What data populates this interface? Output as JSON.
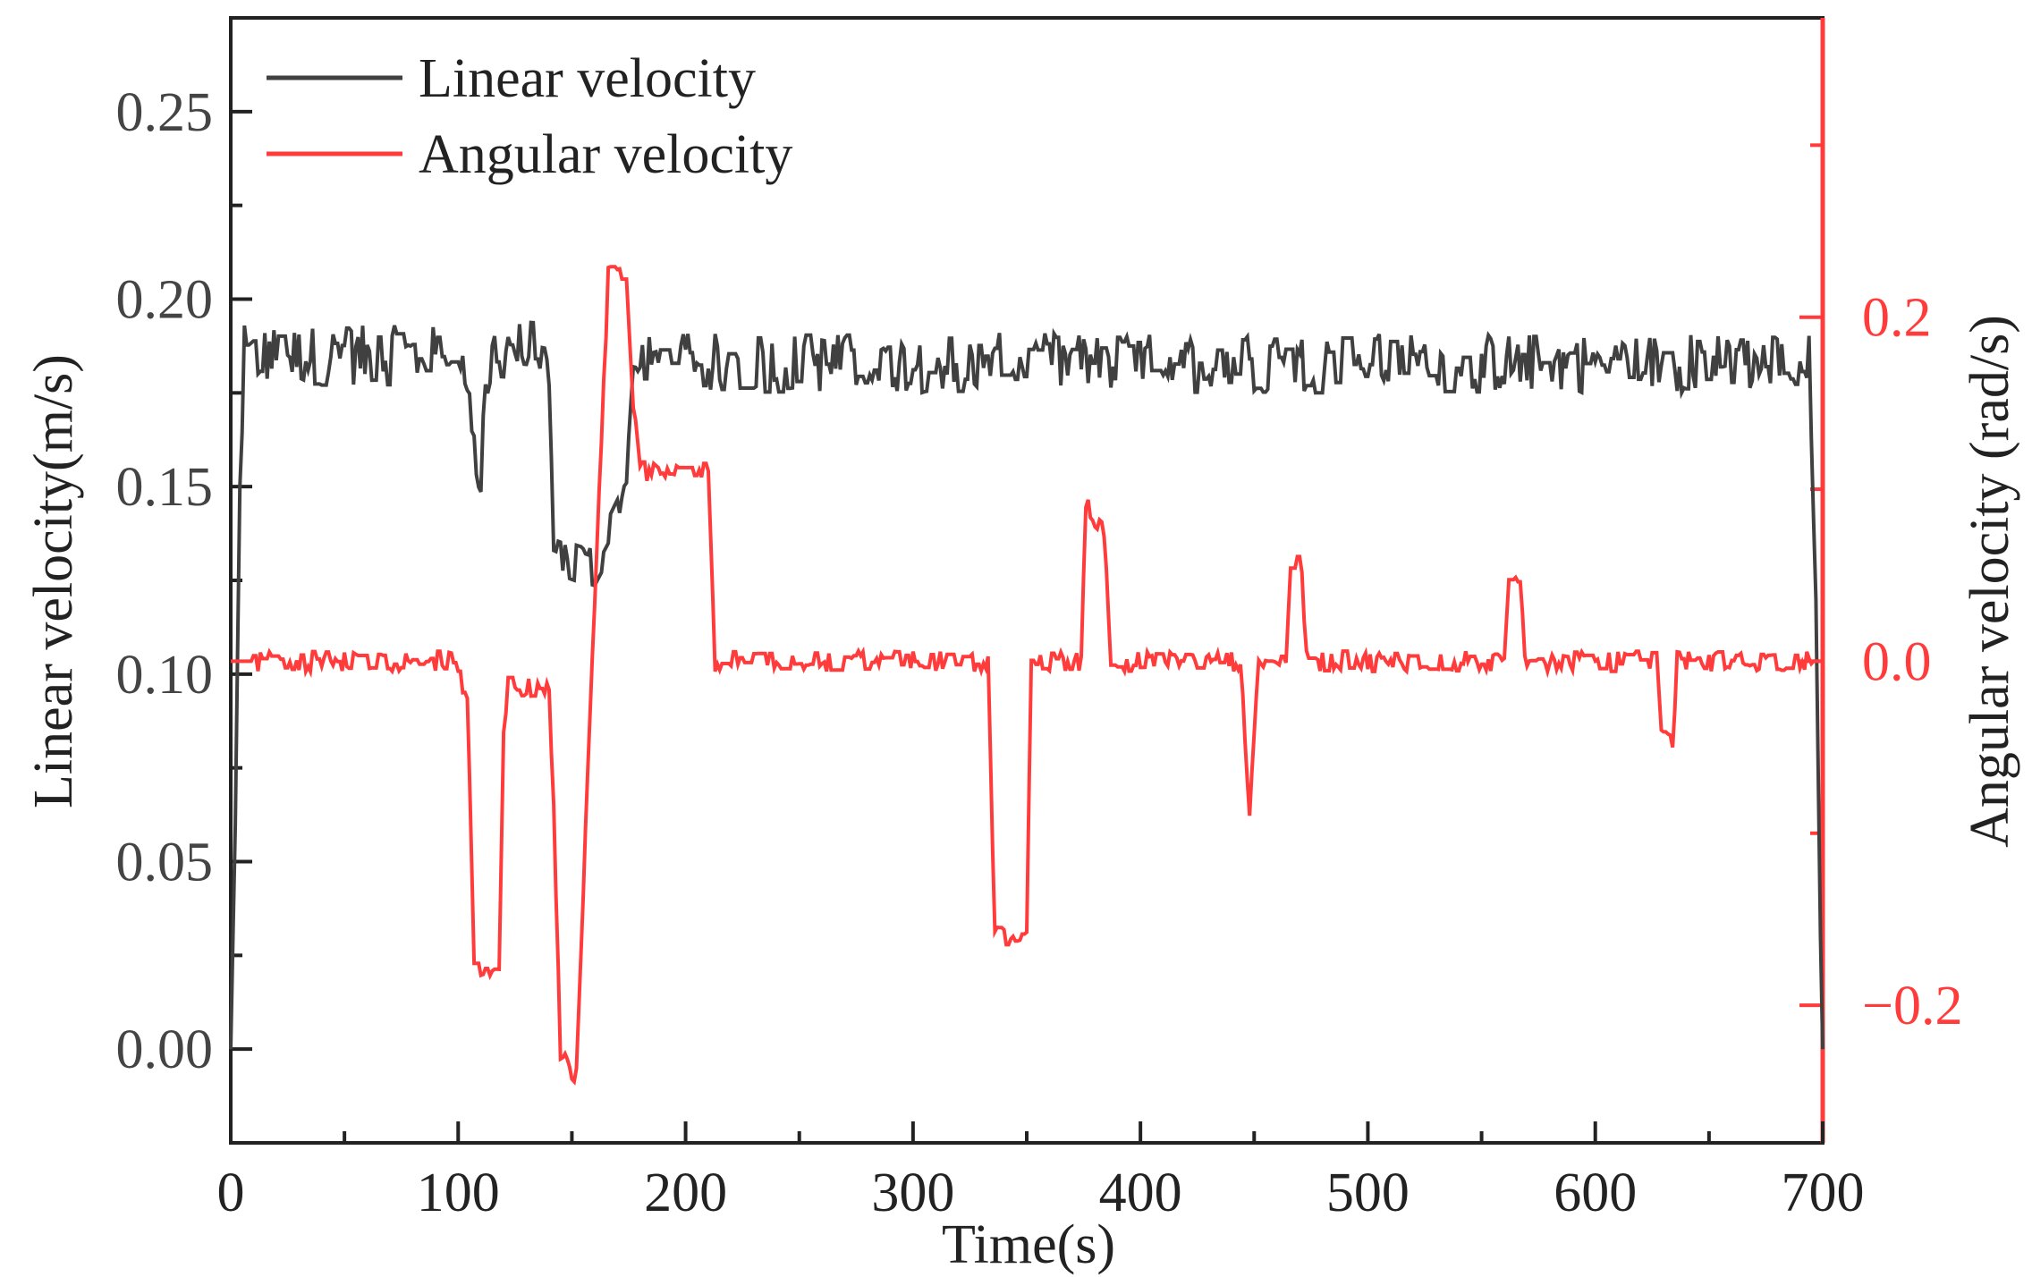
{
  "chart_data": {
    "type": "line",
    "title": "",
    "xlabel": "Time(s)",
    "ylabel": "Linear velocity(m/s)",
    "y2label": "Angular velocity (rad/s)",
    "xlim": [
      0,
      700
    ],
    "ylim": [
      -0.025,
      0.275
    ],
    "y2lim": [
      -0.28,
      0.374
    ],
    "xticks": [
      "0",
      "100",
      "200",
      "300",
      "400",
      "500",
      "600",
      "700"
    ],
    "yticks": [
      "0.00",
      "0.05",
      "0.10",
      "0.15",
      "0.20",
      "0.25"
    ],
    "y2ticks": [
      "−0.2",
      "0.0",
      "0.2"
    ],
    "legend_position": "top-left",
    "colors": {
      "linear": "#404040",
      "angular": "#ff3b3b",
      "axis": "#222222"
    },
    "series": [
      {
        "name": "Linear velocity",
        "axis": "left",
        "noise": 0.008,
        "points": [
          [
            0,
            0.0
          ],
          [
            2,
            0.06
          ],
          [
            4,
            0.15
          ],
          [
            6,
            0.185
          ],
          [
            100,
            0.185
          ],
          [
            104,
            0.178
          ],
          [
            106,
            0.158
          ],
          [
            110,
            0.153
          ],
          [
            113,
            0.178
          ],
          [
            116,
            0.187
          ],
          [
            135,
            0.186
          ],
          [
            140,
            0.18
          ],
          [
            142,
            0.132
          ],
          [
            150,
            0.13
          ],
          [
            160,
            0.128
          ],
          [
            166,
            0.135
          ],
          [
            170,
            0.14
          ],
          [
            174,
            0.152
          ],
          [
            177,
            0.18
          ],
          [
            180,
            0.183
          ],
          [
            694,
            0.183
          ],
          [
            697,
            0.12
          ],
          [
            699,
            0.03
          ],
          [
            700,
            0.0
          ]
        ]
      },
      {
        "name": "Angular velocity",
        "axis": "right",
        "noise": 0.006,
        "points": [
          [
            0,
            0.0
          ],
          [
            99,
            0.0
          ],
          [
            101,
            -0.01
          ],
          [
            104,
            -0.02
          ],
          [
            107,
            -0.178
          ],
          [
            118,
            -0.178
          ],
          [
            120,
            -0.04
          ],
          [
            122,
            -0.015
          ],
          [
            140,
            -0.015
          ],
          [
            142,
            -0.08
          ],
          [
            145,
            -0.23
          ],
          [
            152,
            -0.24
          ],
          [
            156,
            -0.1
          ],
          [
            162,
            0.1
          ],
          [
            166,
            0.225
          ],
          [
            174,
            0.225
          ],
          [
            177,
            0.15
          ],
          [
            180,
            0.11
          ],
          [
            210,
            0.11
          ],
          [
            213,
            0.0
          ],
          [
            333,
            0.0
          ],
          [
            336,
            -0.16
          ],
          [
            350,
            -0.16
          ],
          [
            352,
            0.0
          ],
          [
            374,
            0.0
          ],
          [
            376,
            0.095
          ],
          [
            380,
            0.08
          ],
          [
            384,
            0.075
          ],
          [
            387,
            0.0
          ],
          [
            444,
            0.0
          ],
          [
            446,
            -0.05
          ],
          [
            448,
            -0.09
          ],
          [
            450,
            -0.04
          ],
          [
            452,
            0.0
          ],
          [
            464,
            0.0
          ],
          [
            466,
            0.055
          ],
          [
            471,
            0.055
          ],
          [
            473,
            0.0
          ],
          [
            560,
            0.0
          ],
          [
            562,
            0.05
          ],
          [
            567,
            0.05
          ],
          [
            569,
            0.0
          ],
          [
            627,
            0.0
          ],
          [
            629,
            -0.045
          ],
          [
            634,
            -0.045
          ],
          [
            636,
            0.0
          ],
          [
            700,
            0.0
          ]
        ]
      }
    ]
  }
}
